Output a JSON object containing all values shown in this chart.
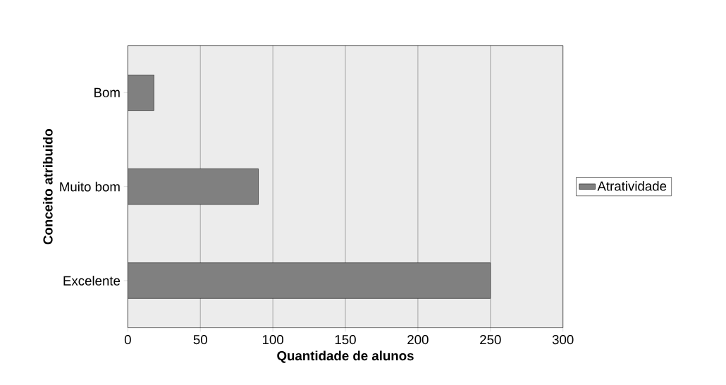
{
  "chart_data": {
    "type": "bar",
    "orientation": "horizontal",
    "xlabel": "Quantidade de alunos",
    "ylabel": "Conceito atribuido",
    "categories": [
      "Bom",
      "Muito bom",
      "Excelente"
    ],
    "series": [
      {
        "name": "Atratividade",
        "color": "#808080",
        "values": [
          18,
          90,
          250
        ]
      }
    ],
    "xlim": [
      0,
      300
    ],
    "xticks": [
      0,
      50,
      100,
      150,
      200,
      250,
      300
    ],
    "grid": "x",
    "legend": "right"
  }
}
